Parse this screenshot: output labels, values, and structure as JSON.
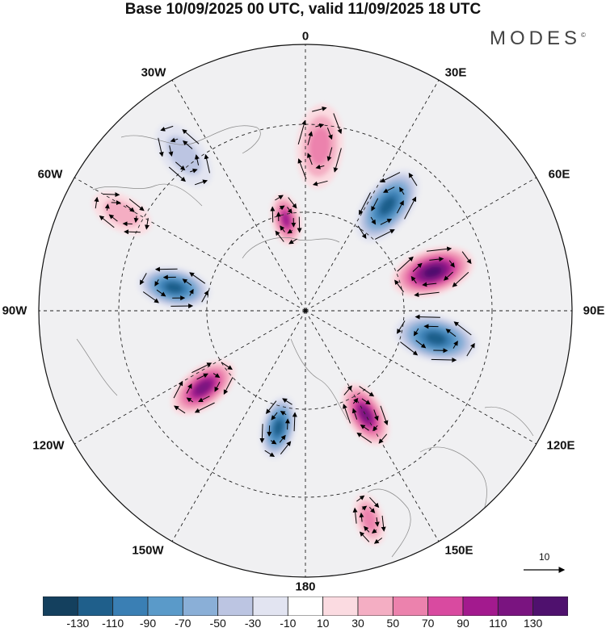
{
  "title": "Base 10/09/2025 00 UTC, valid 11/09/2025 18 UTC",
  "brand": "MODES",
  "brand_mark": "©",
  "longitude_labels": {
    "lon_0": "0",
    "lon_30e": "30E",
    "lon_60e": "60E",
    "lon_90e": "90E",
    "lon_120e": "120E",
    "lon_150e": "150E",
    "lon_180": "180",
    "lon_150w": "150W",
    "lon_120w": "120W",
    "lon_90w": "90W",
    "lon_60w": "60W",
    "lon_30w": "30W"
  },
  "reference_vector": {
    "value": "10"
  },
  "colorbar": {
    "labels": [
      "-130",
      "-110",
      "-90",
      "-70",
      "-50",
      "-30",
      "-10",
      "10",
      "30",
      "50",
      "70",
      "90",
      "110",
      "130"
    ],
    "colors": [
      "#14405e",
      "#1f5f8b",
      "#3a7fb4",
      "#5a9ac9",
      "#8aafd7",
      "#bcc5e2",
      "#e2e4f1",
      "#ffffff",
      "#fbdbe1",
      "#f4aec3",
      "#ec82ad",
      "#d94aa0",
      "#a31a8e",
      "#7a1480",
      "#4f116e"
    ]
  },
  "anomaly_cells": [
    {
      "name": "pos-north-0",
      "lon": 5,
      "dist": 0.62,
      "value": 55,
      "ext": 0.16
    },
    {
      "name": "neg-north-45e",
      "lon": 38,
      "dist": 0.5,
      "value": -125,
      "ext": 0.16
    },
    {
      "name": "pos-east-70e",
      "lon": 73,
      "dist": 0.5,
      "value": 130,
      "ext": 0.16
    },
    {
      "name": "neg-east-100e",
      "lon": 102,
      "dist": 0.5,
      "value": -120,
      "ext": 0.16
    },
    {
      "name": "pos-south-150e",
      "lon": 150,
      "dist": 0.45,
      "value": 125,
      "ext": 0.13
    },
    {
      "name": "neg-south-170w",
      "lon": -167,
      "dist": 0.45,
      "value": -125,
      "ext": 0.12
    },
    {
      "name": "pos-west-130w",
      "lon": -127,
      "dist": 0.48,
      "value": 120,
      "ext": 0.14
    },
    {
      "name": "neg-west-80w",
      "lon": -80,
      "dist": 0.5,
      "value": -115,
      "ext": 0.14
    },
    {
      "name": "pos-nw-15w",
      "lon": -12,
      "dist": 0.35,
      "value": 105,
      "ext": 0.1
    },
    {
      "name": "neg-nnw-40w",
      "lon": -38,
      "dist": 0.74,
      "value": -40,
      "ext": 0.14
    },
    {
      "name": "pos-w-65w",
      "lon": -62,
      "dist": 0.78,
      "value": 30,
      "ext": 0.12
    },
    {
      "name": "pos-s-160e",
      "lon": 163,
      "dist": 0.82,
      "value": 55,
      "ext": 0.1
    }
  ]
}
